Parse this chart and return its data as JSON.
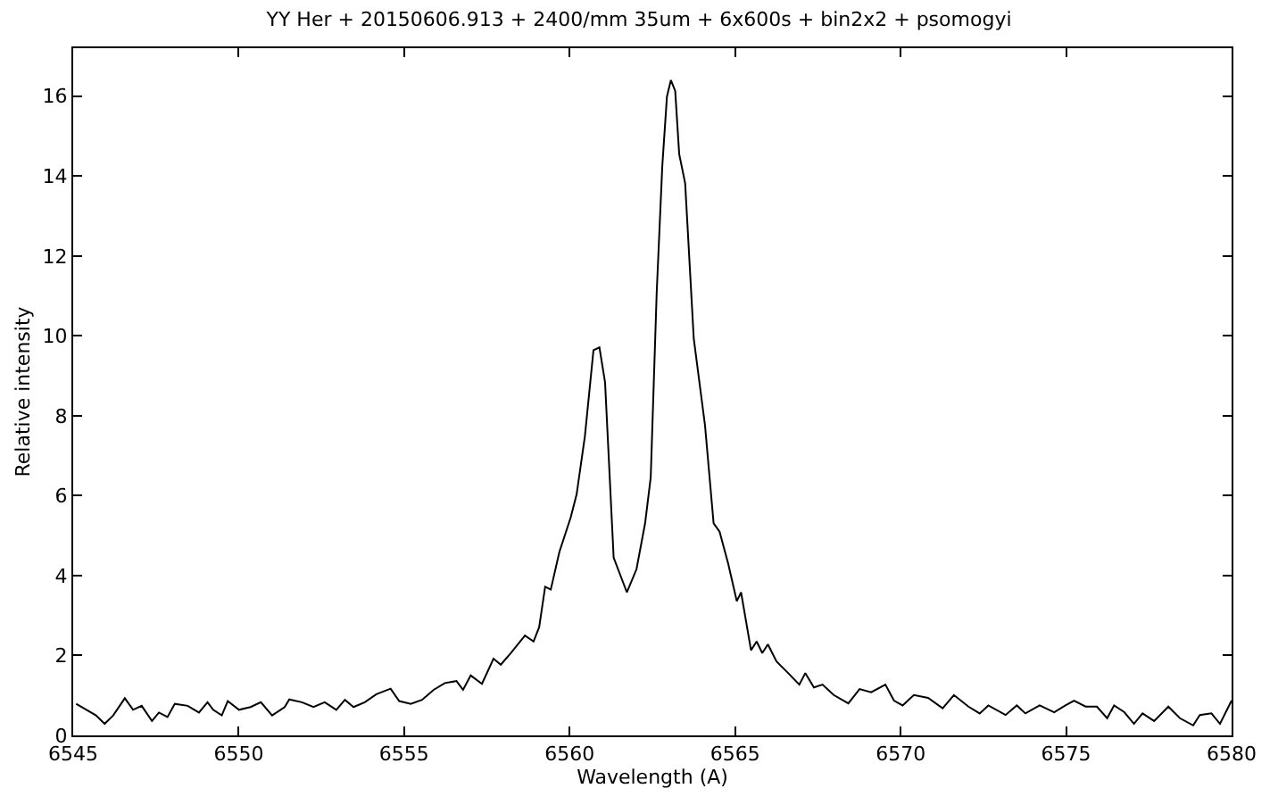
{
  "chart_data": {
    "type": "line",
    "title": "YY Her + 20150606.913 + 2400/mm 35um + 6x600s + bin2x2 + psomogyi",
    "xlabel": "Wavelength (A)",
    "ylabel": "Relative intensity",
    "color": "#000000",
    "x": [
      6545.09,
      6545.69,
      6545.95,
      6546.21,
      6546.56,
      6546.81,
      6547.07,
      6547.38,
      6547.59,
      6547.85,
      6548.07,
      6548.46,
      6548.8,
      6549.06,
      6549.23,
      6549.49,
      6549.67,
      6550.01,
      6550.36,
      6550.67,
      6551.01,
      6551.39,
      6551.53,
      6551.91,
      6552.26,
      6552.6,
      6552.95,
      6553.21,
      6553.47,
      6553.81,
      6554.16,
      6554.59,
      6554.85,
      6555.2,
      6555.54,
      6555.89,
      6556.23,
      6556.58,
      6556.78,
      6557.01,
      6557.35,
      6557.7,
      6557.92,
      6558.22,
      6558.65,
      6558.91,
      6559.08,
      6559.26,
      6559.43,
      6559.69,
      6560.03,
      6560.21,
      6560.46,
      6560.72,
      6560.9,
      6561.07,
      6561.33,
      6561.73,
      6562.02,
      6562.28,
      6562.45,
      6562.63,
      6562.8,
      6562.94,
      6563.06,
      6563.19,
      6563.31,
      6563.49,
      6563.75,
      6564.09,
      6564.35,
      6564.53,
      6564.79,
      6565.05,
      6565.18,
      6565.48,
      6565.65,
      6565.82,
      6565.99,
      6566.25,
      6566.6,
      6566.94,
      6567.12,
      6567.38,
      6567.64,
      6567.98,
      6568.42,
      6568.76,
      6569.11,
      6569.54,
      6569.8,
      6570.06,
      6570.4,
      6570.83,
      6571.27,
      6571.61,
      6572.05,
      6572.39,
      6572.65,
      6573.17,
      6573.51,
      6573.77,
      6574.2,
      6574.64,
      6574.98,
      6575.24,
      6575.59,
      6575.93,
      6576.24,
      6576.45,
      6576.76,
      6577.05,
      6577.31,
      6577.66,
      6578.09,
      6578.44,
      6578.84,
      6579.04,
      6579.39,
      6579.65,
      6580.0
    ],
    "values": [
      0.79,
      0.5,
      0.29,
      0.5,
      0.93,
      0.64,
      0.74,
      0.36,
      0.57,
      0.46,
      0.79,
      0.74,
      0.57,
      0.83,
      0.64,
      0.5,
      0.86,
      0.64,
      0.71,
      0.83,
      0.5,
      0.71,
      0.9,
      0.83,
      0.71,
      0.83,
      0.64,
      0.89,
      0.71,
      0.83,
      1.03,
      1.17,
      0.86,
      0.79,
      0.89,
      1.14,
      1.31,
      1.36,
      1.14,
      1.5,
      1.29,
      1.92,
      1.77,
      2.06,
      2.5,
      2.35,
      2.71,
      3.72,
      3.65,
      4.59,
      5.45,
      6.03,
      7.48,
      9.64,
      9.71,
      8.84,
      4.45,
      3.58,
      4.16,
      5.31,
      6.46,
      11.08,
      14.26,
      15.99,
      16.4,
      16.13,
      14.55,
      13.82,
      9.93,
      7.76,
      5.31,
      5.1,
      4.3,
      3.36,
      3.58,
      2.13,
      2.35,
      2.06,
      2.28,
      1.85,
      1.56,
      1.27,
      1.56,
      1.2,
      1.27,
      1.01,
      0.8,
      1.16,
      1.08,
      1.27,
      0.87,
      0.75,
      1.01,
      0.94,
      0.68,
      1.01,
      0.72,
      0.55,
      0.75,
      0.51,
      0.75,
      0.55,
      0.75,
      0.58,
      0.75,
      0.87,
      0.72,
      0.72,
      0.43,
      0.75,
      0.58,
      0.29,
      0.55,
      0.36,
      0.72,
      0.43,
      0.25,
      0.51,
      0.55,
      0.29,
      0.87
    ],
    "xlim": [
      6545,
      6580
    ],
    "xticks": [
      6545,
      6550,
      6555,
      6560,
      6565,
      6570,
      6575,
      6580
    ],
    "ylim": [
      0,
      17.2
    ],
    "yticks": [
      0,
      2,
      4,
      6,
      8,
      10,
      12,
      14,
      16
    ],
    "grid": false,
    "legend": false,
    "marker": "none",
    "line_style": "solid"
  }
}
